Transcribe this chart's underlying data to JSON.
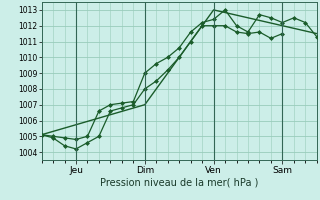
{
  "xlabel": "Pression niveau de la mer( hPa )",
  "bg_color": "#cceee8",
  "plot_bg_color": "#cceee8",
  "grid_color": "#99ccbb",
  "line_color": "#1a5c2a",
  "marker_color": "#1a5c2a",
  "ylim": [
    1003.5,
    1013.5
  ],
  "yticks": [
    1004,
    1005,
    1006,
    1007,
    1008,
    1009,
    1010,
    1011,
    1012,
    1013
  ],
  "xlim": [
    0,
    192
  ],
  "day_positions": [
    24,
    72,
    120,
    168
  ],
  "day_labels": [
    "Jeu",
    "Dim",
    "Ven",
    "Sam"
  ],
  "vline_positions": [
    24,
    72,
    120,
    168
  ],
  "line1_x": [
    0,
    8,
    16,
    24,
    32,
    40,
    48,
    56,
    64,
    72,
    80,
    88,
    96,
    104,
    112,
    120,
    128,
    136,
    144,
    152,
    160,
    168,
    176,
    184,
    192
  ],
  "line1_y": [
    1005.1,
    1005.0,
    1004.9,
    1004.8,
    1005.0,
    1006.6,
    1007.0,
    1007.1,
    1007.2,
    1009.0,
    1009.6,
    1010.0,
    1010.6,
    1011.6,
    1012.2,
    1012.4,
    1013.0,
    1012.0,
    1011.6,
    1012.7,
    1012.5,
    1012.2,
    1012.5,
    1012.2,
    1011.3
  ],
  "line2_x": [
    0,
    8,
    16,
    24,
    32,
    40,
    48,
    56,
    64,
    72,
    80,
    88,
    96,
    104,
    112,
    120,
    128,
    136,
    144,
    152,
    160,
    168
  ],
  "line2_y": [
    1005.1,
    1004.9,
    1004.4,
    1004.2,
    1004.6,
    1005.0,
    1006.6,
    1006.8,
    1007.0,
    1008.0,
    1008.5,
    1009.2,
    1010.0,
    1011.0,
    1012.0,
    1012.0,
    1012.0,
    1011.6,
    1011.5,
    1011.6,
    1011.2,
    1011.5
  ],
  "line3_x": [
    0,
    72,
    120,
    192
  ],
  "line3_y": [
    1005.1,
    1007.0,
    1013.0,
    1011.5
  ]
}
